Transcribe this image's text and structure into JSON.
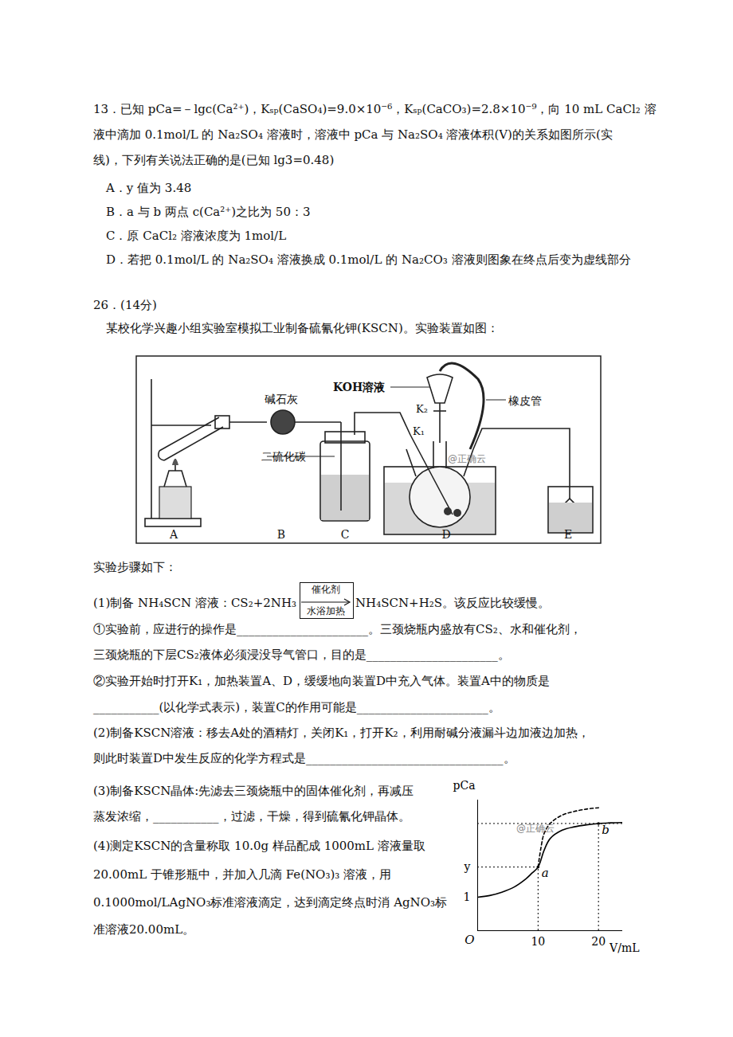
{
  "question13": {
    "stem_lines": [
      "13．已知 pCa=－lgc(Ca²⁺)，Kₛₚ(CaSO₄)=9.0×10⁻⁶，Kₛₚ(CaCO₃)=2.8×10⁻⁹，向 10 mL CaCl₂ 溶",
      "液中滴加 0.1mol/L 的 Na₂SO₄ 溶液时，溶液中 pCa 与 Na₂SO₄ 溶液体积(V)的关系如图所示(实",
      "线)，下列有关说法正确的是(已知 lg3=0.48)"
    ],
    "options": [
      "A．y 值为 3.48",
      "B．a 与 b 两点 c(Ca²⁺)之比为 50：3",
      "C．原 CaCl₂ 溶液浓度为 1mol/L",
      "D．若把 0.1mol/L 的 Na₂SO₄ 溶液换成 0.1mol/L 的 Na₂CO₃ 溶液则图象在终点后变为虚线部分"
    ]
  },
  "question26": {
    "heading": "26．(14分)",
    "intro": "某校化学兴趣小组实验室模拟工业制备硫氰化钾(KSCN)。实验装置如图：",
    "steps_title": "实验步骤如下：",
    "equation": {
      "prefix": "(1)制备 NH₄SCN 溶液：CS₂+2NH₃",
      "catalyst": "催化剂",
      "condition": "水浴加热",
      "suffix": "NH₄SCN+H₂S。该反应比较缓慢。"
    },
    "lines": [
      "①实验前，应进行的操作是______________________。三颈烧瓶内盛放有CS₂、水和催化剂，",
      "三颈烧瓶的下层CS₂液体必须浸没导气管口，目的是______________________。",
      "②实验开始时打开K₁，加热装置A、D，缓缓地向装置D中充入气体。装置A中的物质是",
      "___________(以化学式表示)，装置C的作用可能是______________________。",
      "(2)制备KSCN溶液：移去A处的酒精灯，关闭K₁，打开K₂，利用耐碱分液漏斗边加液边加热，",
      "则此时装置D中发生反应的化学方程式是_________________________________。",
      "(3)制备KSCN晶体:先滤去三颈烧瓶中的固体催化剂，再减压",
      "蒸发浓缩，___________，过滤，干燥，得到硫氰化钾晶体。",
      "(4)测定KSCN的含量称取 10.0g 样品配成 1000mL 溶液量取",
      "20.00mL 于锥形瓶中，并加入几滴 Fe(NO₃)₃ 溶液，用",
      "0.1000mol/LAgNO₃标准溶液滴定，达到滴定终点时消 AgNO₃标",
      "准溶液20.00mL。"
    ]
  },
  "apparatus": {
    "labels": {
      "soda_lime": "碱石灰",
      "carbon_disulfide": "二硫化碳",
      "koh": "KOH溶液",
      "k2": "K₂",
      "k1": "K₁",
      "hose": "橡皮管"
    },
    "units": [
      "A",
      "B",
      "C",
      "D",
      "E"
    ],
    "watermark": "@正确云"
  },
  "chart_data": {
    "type": "line",
    "x_label": "V/mL",
    "y_label": "pCa",
    "origin_label": "O",
    "watermark": "@正确云",
    "color": "#000000",
    "xlim": [
      0,
      24
    ],
    "ylim": [
      0,
      3.9
    ],
    "xticks": [
      10,
      20
    ],
    "yticks": [
      1,
      {
        "value": 1.9,
        "label": "y"
      }
    ],
    "series": [
      {
        "line_style": "solid",
        "x": [
          0,
          2,
          4,
          6,
          8,
          9,
          10,
          11,
          12,
          14,
          16,
          18,
          20,
          22,
          24
        ],
        "values": [
          1,
          1.05,
          1.15,
          1.3,
          1.55,
          1.72,
          1.9,
          2.4,
          2.75,
          3.0,
          3.1,
          3.16,
          3.2,
          3.22,
          3.23
        ]
      },
      {
        "line_style": "dashed",
        "x": [
          10,
          10.5,
          11,
          12,
          14,
          16,
          18,
          20
        ],
        "values": [
          1.9,
          2.5,
          2.9,
          3.2,
          3.45,
          3.56,
          3.63,
          3.67
        ]
      }
    ],
    "points": [
      {
        "label": "a",
        "x": 10,
        "y": 1.9
      },
      {
        "label": "b",
        "x": 20,
        "y": 3.2
      }
    ]
  }
}
